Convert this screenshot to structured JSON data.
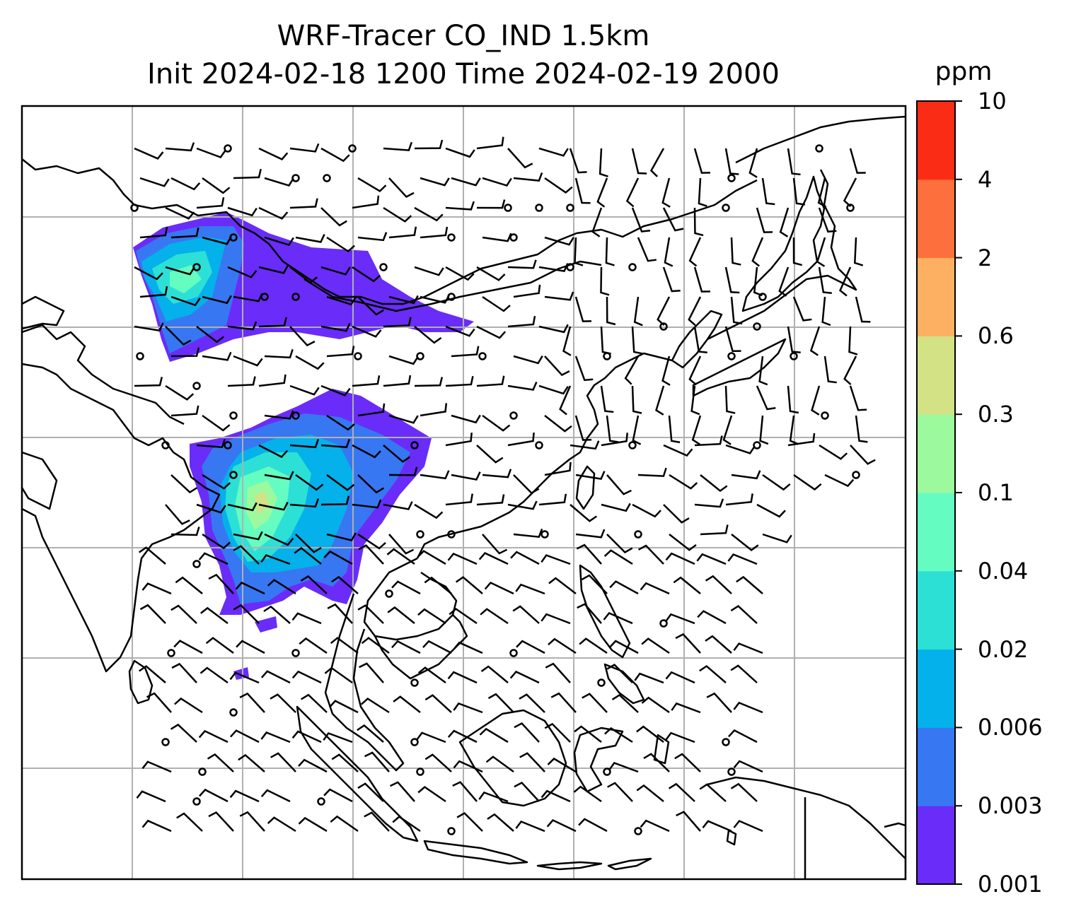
{
  "title_line1": "WRF-Tracer CO_IND 1.5km",
  "title_line2": "Init 2024-02-18 1200 Time 2024-02-19 2000",
  "colorbar": {
    "unit": "ppm",
    "ticks": [
      "0.001",
      "0.003",
      "0.006",
      "0.02",
      "0.04",
      "0.1",
      "0.3",
      "0.6",
      "2",
      "4",
      "10"
    ],
    "colors": [
      "#6a2cf8",
      "#3777f2",
      "#04b1ea",
      "#2de0d6",
      "#65fcc1",
      "#9df99d",
      "#d2e285",
      "#fdb062",
      "#fd6f3c",
      "#fa2c16"
    ]
  },
  "map": {
    "gridline_color": "#b0b0b0",
    "coastline_color": "#000000",
    "wind_barb_color": "#000000"
  }
}
